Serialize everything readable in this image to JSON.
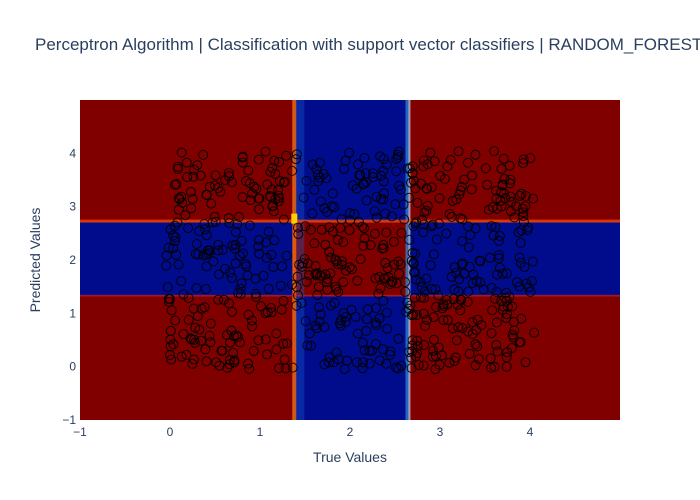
{
  "chart_data": {
    "type": "scatter",
    "title": "Perceptron Algorithm | Classification with support vector classifiers | RANDOM_FOREST",
    "xlabel": "True Values",
    "ylabel": "Predicted Values",
    "xlim": [
      -1,
      5
    ],
    "ylim": [
      -1,
      5
    ],
    "x_ticks": [
      "−1",
      "0",
      "1",
      "2",
      "3",
      "4"
    ],
    "y_ticks": [
      "−1",
      "0",
      "1",
      "2",
      "3",
      "4"
    ],
    "background_regions": {
      "x_edges": [
        -1,
        1.37,
        2.65,
        5
      ],
      "y_edges": [
        -1,
        1.33,
        2.72,
        5
      ],
      "classes": [
        [
          "red",
          "blue",
          "red"
        ],
        [
          "blue",
          "red",
          "blue"
        ],
        [
          "red",
          "blue",
          "red"
        ]
      ]
    },
    "colors": {
      "red": "#800000",
      "blue": "#000c8c",
      "boundary": "#ffd000",
      "marker_edge": "#000000"
    },
    "series": [
      {
        "marker": "open-circle",
        "x_range": [
          -0.05,
          4.05
        ],
        "y_range": [
          -0.05,
          4.05
        ],
        "count": 700
      }
    ]
  }
}
